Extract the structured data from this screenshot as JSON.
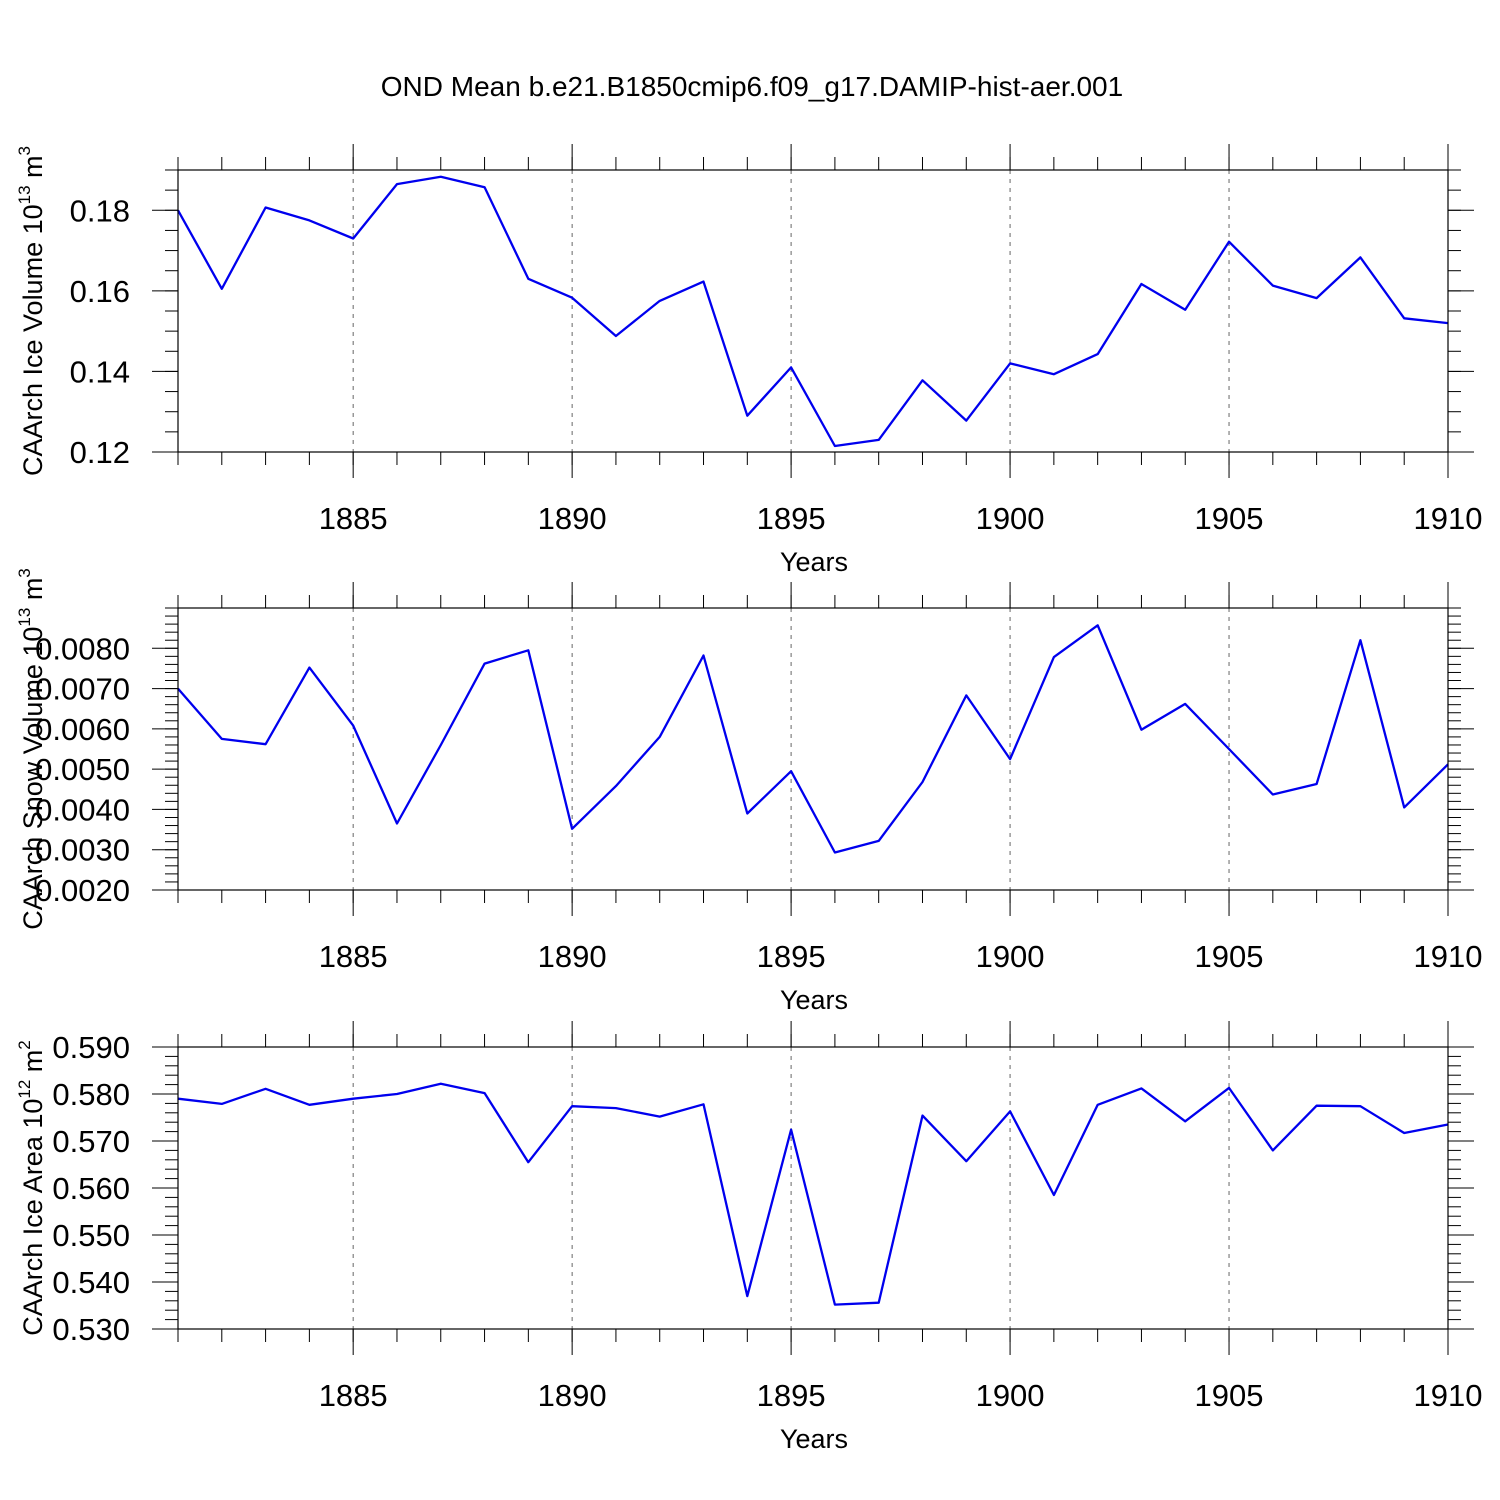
{
  "title": "OND Mean b.e21.B1850cmip6.f09_g17.DAMIP-hist-aer.001",
  "colors": {
    "line": "#0000ee",
    "axis": "#000000",
    "grid": "#666666"
  },
  "chart_data": [
    {
      "type": "line",
      "title": "OND Mean b.e21.B1850cmip6.f09_g17.DAMIP-hist-aer.001",
      "ylabel": "CAArch Ice Volume 10",
      "ylabel_exp": "13",
      "ylabel_unit": "m",
      "ylabel_unit_exp": "3",
      "xlabel": "Years",
      "xlim": [
        1881,
        1910
      ],
      "ylim": [
        0.12,
        0.19
      ],
      "yticks": [
        0.12,
        0.14,
        0.16,
        0.18
      ],
      "ytick_labels": [
        "0.12",
        "0.14",
        "0.16",
        "0.18"
      ],
      "xticks": [
        1885,
        1890,
        1895,
        1900,
        1905,
        1910
      ],
      "xtick_labels": [
        "1885",
        "1890",
        "1895",
        "1900",
        "1905",
        "1910"
      ],
      "grid": "dashed vertical at major x ticks",
      "x": [
        1881,
        1882,
        1883,
        1884,
        1885,
        1886,
        1887,
        1888,
        1889,
        1890,
        1891,
        1892,
        1893,
        1894,
        1895,
        1896,
        1897,
        1898,
        1899,
        1900,
        1901,
        1902,
        1903,
        1904,
        1905,
        1906,
        1907,
        1908,
        1909,
        1910
      ],
      "values": [
        0.18,
        0.1605,
        0.1807,
        0.1775,
        0.173,
        0.1865,
        0.1883,
        0.1857,
        0.163,
        0.1583,
        0.1488,
        0.1575,
        0.1623,
        0.129,
        0.141,
        0.1215,
        0.123,
        0.1378,
        0.1278,
        0.142,
        0.1393,
        0.1443,
        0.1617,
        0.1553,
        0.1722,
        0.1613,
        0.1582,
        0.1683,
        0.1532,
        0.152
      ]
    },
    {
      "type": "line",
      "ylabel": "CAArch Snow Volume 10",
      "ylabel_exp": "13",
      "ylabel_unit": "m",
      "ylabel_unit_exp": "3",
      "xlabel": "Years",
      "xlim": [
        1881,
        1910
      ],
      "ylim": [
        0.002,
        0.009
      ],
      "yticks": [
        0.002,
        0.003,
        0.004,
        0.005,
        0.006,
        0.007,
        0.008
      ],
      "ytick_labels": [
        "0.0020",
        "0.0030",
        "0.0040",
        "0.0050",
        "0.0060",
        "0.0070",
        "0.0080"
      ],
      "xticks": [
        1885,
        1890,
        1895,
        1900,
        1905,
        1910
      ],
      "xtick_labels": [
        "1885",
        "1890",
        "1895",
        "1900",
        "1905",
        "1910"
      ],
      "grid": "dashed vertical at major x ticks",
      "x": [
        1881,
        1882,
        1883,
        1884,
        1885,
        1886,
        1887,
        1888,
        1889,
        1890,
        1891,
        1892,
        1893,
        1894,
        1895,
        1896,
        1897,
        1898,
        1899,
        1900,
        1901,
        1902,
        1903,
        1904,
        1905,
        1906,
        1907,
        1908,
        1909,
        1910
      ],
      "values": [
        0.007,
        0.00575,
        0.00562,
        0.00752,
        0.00608,
        0.00365,
        0.0056,
        0.00762,
        0.00795,
        0.00352,
        0.00458,
        0.0058,
        0.00782,
        0.0039,
        0.00495,
        0.00293,
        0.00322,
        0.00468,
        0.00683,
        0.00525,
        0.00778,
        0.00857,
        0.00598,
        0.00662,
        0.0055,
        0.00437,
        0.00463,
        0.0082,
        0.00405,
        0.00512
      ]
    },
    {
      "type": "line",
      "ylabel": "CAArch Ice Area 10",
      "ylabel_exp": "12",
      "ylabel_unit": "m",
      "ylabel_unit_exp": "2",
      "xlabel": "Years",
      "xlim": [
        1881,
        1910
      ],
      "ylim": [
        0.53,
        0.59
      ],
      "yticks": [
        0.53,
        0.54,
        0.55,
        0.56,
        0.57,
        0.58,
        0.59
      ],
      "ytick_labels": [
        "0.530",
        "0.540",
        "0.550",
        "0.560",
        "0.570",
        "0.580",
        "0.590"
      ],
      "xticks": [
        1885,
        1890,
        1895,
        1900,
        1905,
        1910
      ],
      "xtick_labels": [
        "1885",
        "1890",
        "1895",
        "1900",
        "1905",
        "1910"
      ],
      "grid": "dashed vertical at major x ticks",
      "x": [
        1881,
        1882,
        1883,
        1884,
        1885,
        1886,
        1887,
        1888,
        1889,
        1890,
        1891,
        1892,
        1893,
        1894,
        1895,
        1896,
        1897,
        1898,
        1899,
        1900,
        1901,
        1902,
        1903,
        1904,
        1905,
        1906,
        1907,
        1908,
        1909,
        1910
      ],
      "values": [
        0.579,
        0.5779,
        0.5811,
        0.5777,
        0.579,
        0.58,
        0.5822,
        0.5802,
        0.5655,
        0.5774,
        0.577,
        0.5752,
        0.5778,
        0.537,
        0.5724,
        0.5352,
        0.5356,
        0.5754,
        0.5657,
        0.5763,
        0.5585,
        0.5777,
        0.5812,
        0.5742,
        0.5813,
        0.568,
        0.5775,
        0.5774,
        0.5717,
        0.5735
      ]
    }
  ]
}
